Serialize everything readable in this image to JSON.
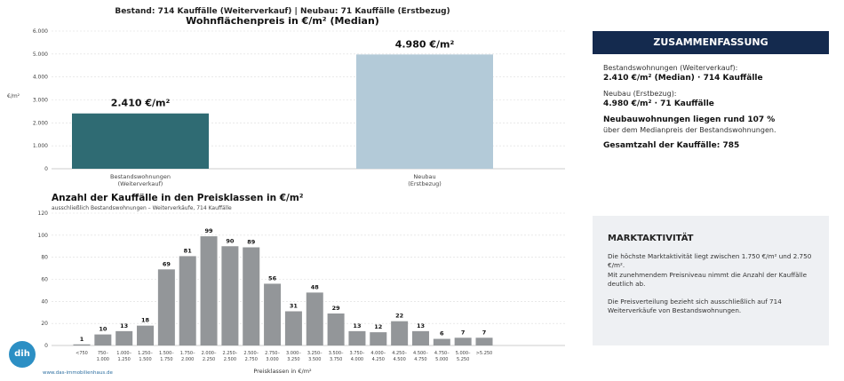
{
  "colors": {
    "bestand_bar": "#2f6b73",
    "neubau_bar": "#b3cad8",
    "hist_bar": "#939699",
    "navy": "#142a4e",
    "grid": "#dcdcdc",
    "panel_bg": "#eef0f3",
    "logo": "#2c8fc4"
  },
  "header": {
    "subtitle": "Bestand: 714 Kauffälle (Weiterverkauf)   |   Neubau: 71 Kauffälle (Erstbezug)"
  },
  "chart_data": [
    {
      "type": "bar",
      "title": "Wohnflächenpreis in €/m² (Median)",
      "ylabel": "€/m²",
      "ylim": [
        0,
        6000
      ],
      "yticks": [
        "0",
        "1.000",
        "2.000",
        "3.000",
        "4.000",
        "5.000",
        "6.000"
      ],
      "grid": true,
      "categories": [
        "Bestandswohnungen (Weiterverkauf)",
        "Neubau (Erstbezug)"
      ],
      "category_lines": [
        [
          "Bestandswohnungen",
          "(Weiterverkauf)"
        ],
        [
          "Neubau",
          "(Erstbezug)"
        ]
      ],
      "values": [
        2410,
        4980
      ],
      "value_labels": [
        "2.410 €/m²",
        "4.980 €/m²"
      ]
    },
    {
      "type": "bar",
      "title": "Anzahl der Kauffälle in den Preisklassen in €/m²",
      "subtitle": "ausschließlich Bestandswohnungen – Weiterverkäufe, 714 Kauffälle",
      "xlabel": "Preisklassen in €/m²",
      "ylim": [
        0,
        120
      ],
      "yticks": [
        "0",
        "20",
        "40",
        "60",
        "80",
        "100",
        "120"
      ],
      "grid": true,
      "categories": [
        "<750",
        "750–1.000",
        "1.000–1.250",
        "1.250–1.500",
        "1.500–1.750",
        "1.750–2.000",
        "2.000–2.250",
        "2.250–2.500",
        "2.500–2.750",
        "2.750–3.000",
        "3.000–3.250",
        "3.250–3.500",
        "3.500–3.750",
        "3.750–4.000",
        "4.000–4.250",
        "4.250–4.500",
        "4.500–4.750",
        "4.750–5.000",
        "5.000–5.250",
        ">5.250"
      ],
      "category_lines": [
        [
          "<750"
        ],
        [
          "750–",
          "1.000"
        ],
        [
          "1.000–",
          "1.250"
        ],
        [
          "1.250–",
          "1.500"
        ],
        [
          "1.500–",
          "1.750"
        ],
        [
          "1.750–",
          "2.000"
        ],
        [
          "2.000–",
          "2.250"
        ],
        [
          "2.250–",
          "2.500"
        ],
        [
          "2.500–",
          "2.750"
        ],
        [
          "2.750–",
          "3.000"
        ],
        [
          "3.000–",
          "3.250"
        ],
        [
          "3.250–",
          "3.500"
        ],
        [
          "3.500–",
          "3.750"
        ],
        [
          "3.750–",
          "4.000"
        ],
        [
          "4.000–",
          "4.250"
        ],
        [
          "4.250–",
          "4.500"
        ],
        [
          "4.500–",
          "4.750"
        ],
        [
          "4.750–",
          "5.000"
        ],
        [
          "5.000–",
          "5.250"
        ],
        [
          ">5.250"
        ]
      ],
      "values": [
        1,
        10,
        13,
        18,
        69,
        81,
        99,
        90,
        89,
        56,
        31,
        48,
        29,
        13,
        12,
        22,
        13,
        6,
        7,
        7
      ]
    }
  ],
  "summary": {
    "title": "ZUSAMMENFASSUNG",
    "bestand_label": "Bestandswohnungen (Weiterverkauf):",
    "bestand_value": "2.410 €/m² (Median) · 714 Kauffälle",
    "neubau_label": "Neubau (Erstbezug):",
    "neubau_value": "4.980 €/m² · 71 Kauffälle",
    "diff_bold": "Neubauwohnungen liegen rund 107 %",
    "diff_text": "über dem Medianpreis der Bestandswohnungen.",
    "total": "Gesamtzahl der Kauffälle: 785"
  },
  "market": {
    "title": "MARKTAKTIVITÄT",
    "p1": "Die höchste Marktaktivität liegt zwischen 1.750 €/m² und 2.750 €/m².",
    "p2": "Mit zunehmendem Preisniveau nimmt die Anzahl der Kauffälle deutlich ab.",
    "p3": "Die Preisverteilung bezieht sich ausschließlich auf 714 Weiterverkäufe von Bestandswohnungen."
  },
  "footer": {
    "logo_text": "dih",
    "website": "www.das-immobilienhaus.de"
  }
}
